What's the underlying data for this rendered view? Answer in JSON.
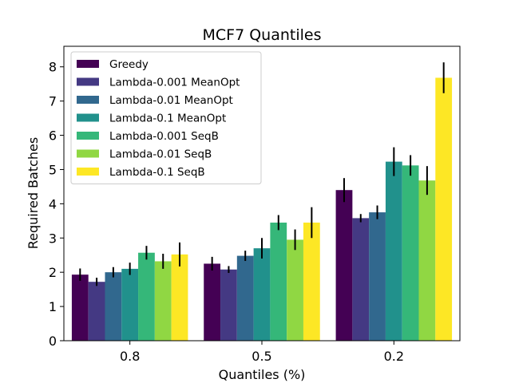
{
  "chart_data": {
    "type": "bar",
    "title": "MCF7 Quantiles",
    "xlabel": "Quantiles (%)",
    "ylabel": "Required Batches",
    "categories": [
      "0.8",
      "0.5",
      "0.2"
    ],
    "ylim": [
      0,
      8.6
    ],
    "yticks": [
      "0",
      "1",
      "2",
      "3",
      "4",
      "5",
      "6",
      "7",
      "8"
    ],
    "grid": false,
    "legend_position": "top-left",
    "series": [
      {
        "name": "Greedy",
        "color": "#440154",
        "values": [
          1.93,
          2.25,
          4.4
        ],
        "errors": [
          0.18,
          0.2,
          0.35
        ]
      },
      {
        "name": "Lambda-0.001 MeanOpt",
        "color": "#443983",
        "values": [
          1.72,
          2.08,
          3.58
        ],
        "errors": [
          0.12,
          0.1,
          0.12
        ]
      },
      {
        "name": "Lambda-0.01 MeanOpt",
        "color": "#31688e",
        "values": [
          2.0,
          2.48,
          3.75
        ],
        "errors": [
          0.15,
          0.15,
          0.2
        ]
      },
      {
        "name": "Lambda-0.1 MeanOpt",
        "color": "#21918c",
        "values": [
          2.1,
          2.7,
          5.23
        ],
        "errors": [
          0.18,
          0.3,
          0.42
        ]
      },
      {
        "name": "Lambda-0.001 SeqB",
        "color": "#35b779",
        "values": [
          2.57,
          3.45,
          5.12
        ],
        "errors": [
          0.2,
          0.22,
          0.3
        ]
      },
      {
        "name": "Lambda-0.01 SeqB",
        "color": "#90d743",
        "values": [
          2.32,
          2.95,
          4.68
        ],
        "errors": [
          0.22,
          0.3,
          0.42
        ]
      },
      {
        "name": "Lambda-0.1 SeqB",
        "color": "#fde725",
        "values": [
          2.52,
          3.45,
          7.68
        ],
        "errors": [
          0.35,
          0.45,
          0.45
        ]
      }
    ]
  }
}
